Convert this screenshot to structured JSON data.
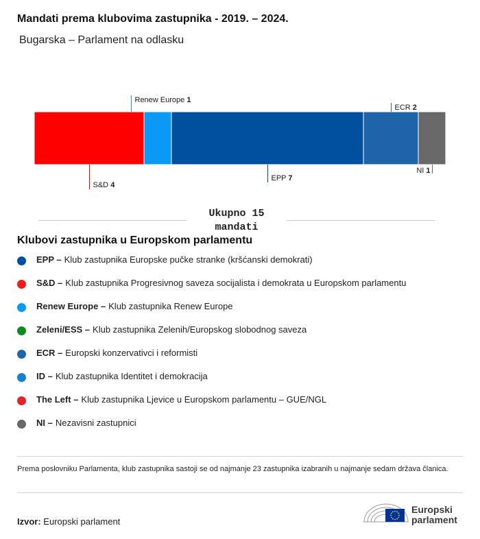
{
  "title": "Mandati prema klubovima zastupnika - 2019. – 2024.",
  "subtitle": "Bugarska – Parlament na odlasku",
  "chart_data": {
    "type": "bar",
    "orientation": "horizontal-stacked",
    "total": 15,
    "segments": [
      {
        "name": "S&D",
        "value": 4,
        "color": "#ff0000",
        "label_position": "below"
      },
      {
        "name": "Renew Europe",
        "value": 1,
        "color": "#0a9af5",
        "label_position": "above"
      },
      {
        "name": "EPP",
        "value": 7,
        "color": "#0050a0",
        "label_position": "below"
      },
      {
        "name": "ECR",
        "value": 2,
        "color": "#1e64a8",
        "label_position": "above"
      },
      {
        "name": "NI",
        "value": 1,
        "color": "#686868",
        "label_position": "below"
      }
    ]
  },
  "total_label": "Ukupno 15 mandati",
  "legend_title": "Klubovi zastupnika u Europskom parlamentu",
  "legend": [
    {
      "abbr": "EPP –",
      "text": "Klub zastupnika Europske pučke stranke (kršćanski demokrati)",
      "color": "#0050a0"
    },
    {
      "abbr": "S&D –",
      "text": "Klub zastupnika Progresivnog saveza socijalista i demokrata u Europskom parlamentu",
      "color": "#f01b1b"
    },
    {
      "abbr": "Renew Europe –",
      "text": "Klub zastupnika Renew Europe",
      "color": "#0a9af5"
    },
    {
      "abbr": "Zeleni/ESS –",
      "text": "Klub zastupnika Zelenih/Europskog slobodnog saveza",
      "color": "#0f8a1e"
    },
    {
      "abbr": "ECR –",
      "text": "Europski konzervativci i reformisti",
      "color": "#1e64a8"
    },
    {
      "abbr": "ID –",
      "text": "Klub zastupnika Identitet i demokracija",
      "color": "#1780d4"
    },
    {
      "abbr": "The Left –",
      "text": "Klub zastupnika Ljevice u Europskom parlamentu – GUE/NGL",
      "color": "#e3242b"
    },
    {
      "abbr": "NI –",
      "text": "Nezavisni zastupnici",
      "color": "#686868"
    }
  ],
  "note": "Prema poslovniku Parlamenta, klub zastupnika sastoji se od najmanje 23 zastupnika izabranih u najmanje sedam država članica.",
  "source_label": "Izvor:",
  "source_value": "Europski parlament",
  "logo": {
    "line1": "Europski",
    "line2": "parlament",
    "flag_color": "#003399",
    "star_color": "#ffcc00"
  }
}
